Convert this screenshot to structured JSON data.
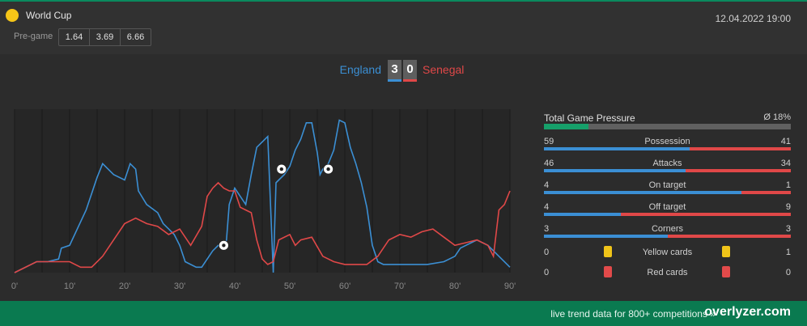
{
  "header": {
    "competition": "World Cup",
    "datetime": "12.04.2022 19:00",
    "pregame_label": "Pre-game",
    "odds": [
      "1.64",
      "3.69",
      "6.66"
    ],
    "competition_icon": "trophy-circle-icon"
  },
  "match": {
    "home_team": "England",
    "away_team": "Senegal",
    "home_score": "3",
    "away_score": "0"
  },
  "colors": {
    "home": "#3b8fd4",
    "away": "#e04848",
    "accent": "#0a7a50",
    "pressure": "#16a06a"
  },
  "chart_data": {
    "type": "line",
    "xlabel": "",
    "ylabel": "",
    "xlim": [
      0,
      90
    ],
    "x_ticks": [
      "0'",
      "10'",
      "20'",
      "30'",
      "40'",
      "50'",
      "60'",
      "70'",
      "80'",
      "90'"
    ],
    "grid": true,
    "series": [
      {
        "color": "#3b8fd4",
        "points": [
          [
            0,
            0
          ],
          [
            2,
            2
          ],
          [
            4,
            4
          ],
          [
            6,
            4
          ],
          [
            8,
            5
          ],
          [
            8.5,
            9
          ],
          [
            10,
            10
          ],
          [
            13,
            23
          ],
          [
            15,
            35
          ],
          [
            16,
            40
          ],
          [
            17,
            38
          ],
          [
            18,
            36
          ],
          [
            20,
            34
          ],
          [
            21,
            40
          ],
          [
            22,
            38
          ],
          [
            22.5,
            30
          ],
          [
            24,
            25
          ],
          [
            26,
            22
          ],
          [
            27,
            18
          ],
          [
            28,
            16
          ],
          [
            29,
            14
          ],
          [
            30,
            10
          ],
          [
            31,
            4
          ],
          [
            33,
            2
          ],
          [
            34,
            2
          ],
          [
            35,
            5
          ],
          [
            36,
            8
          ],
          [
            37,
            10
          ],
          [
            38,
            9
          ],
          [
            38.5,
            12
          ],
          [
            39,
            25
          ],
          [
            40,
            31
          ],
          [
            41,
            28
          ],
          [
            42,
            25
          ],
          [
            43,
            36
          ],
          [
            44,
            46
          ],
          [
            45,
            48
          ],
          [
            46,
            50
          ],
          [
            47,
            0
          ],
          [
            47.5,
            33
          ],
          [
            48,
            34
          ],
          [
            49,
            36
          ],
          [
            50,
            39
          ],
          [
            51,
            45
          ],
          [
            52,
            49
          ],
          [
            53,
            55
          ],
          [
            54,
            55
          ],
          [
            55,
            44
          ],
          [
            55.5,
            36
          ],
          [
            56,
            38
          ],
          [
            57,
            40
          ],
          [
            58,
            45
          ],
          [
            59,
            56
          ],
          [
            60,
            55
          ],
          [
            61,
            46
          ],
          [
            62,
            40
          ],
          [
            63,
            33
          ],
          [
            64,
            24
          ],
          [
            65,
            10
          ],
          [
            66,
            4
          ],
          [
            67,
            3
          ],
          [
            70,
            3
          ],
          [
            75,
            3
          ],
          [
            78,
            4
          ],
          [
            80,
            6
          ],
          [
            81,
            9
          ],
          [
            82,
            10
          ],
          [
            84,
            12
          ],
          [
            86,
            10
          ],
          [
            88,
            6
          ],
          [
            90,
            2
          ]
        ]
      },
      {
        "color": "#e04848",
        "points": [
          [
            0,
            0
          ],
          [
            4,
            4
          ],
          [
            8,
            4
          ],
          [
            10,
            4
          ],
          [
            12,
            2
          ],
          [
            14,
            2
          ],
          [
            16,
            6
          ],
          [
            18,
            12
          ],
          [
            20,
            18
          ],
          [
            22,
            20
          ],
          [
            24,
            18
          ],
          [
            26,
            17
          ],
          [
            28,
            14
          ],
          [
            30,
            16
          ],
          [
            32,
            10
          ],
          [
            34,
            17
          ],
          [
            35,
            28
          ],
          [
            36,
            31
          ],
          [
            37,
            33
          ],
          [
            38,
            31
          ],
          [
            39,
            30
          ],
          [
            40,
            30
          ],
          [
            41,
            24
          ],
          [
            42,
            23
          ],
          [
            43,
            22
          ],
          [
            44,
            12
          ],
          [
            45,
            5
          ],
          [
            46,
            3
          ],
          [
            47,
            4
          ],
          [
            48,
            12
          ],
          [
            50,
            14
          ],
          [
            51,
            10
          ],
          [
            52,
            12
          ],
          [
            54,
            13
          ],
          [
            56,
            6
          ],
          [
            58,
            4
          ],
          [
            60,
            3
          ],
          [
            62,
            3
          ],
          [
            64,
            3
          ],
          [
            66,
            6
          ],
          [
            68,
            12
          ],
          [
            70,
            14
          ],
          [
            72,
            13
          ],
          [
            74,
            15
          ],
          [
            76,
            16
          ],
          [
            78,
            13
          ],
          [
            80,
            10
          ],
          [
            82,
            11
          ],
          [
            84,
            12
          ],
          [
            86,
            10
          ],
          [
            87,
            6
          ],
          [
            88,
            23
          ],
          [
            89,
            25
          ],
          [
            90,
            30
          ]
        ]
      }
    ],
    "goals": [
      {
        "x": 38,
        "y": 10
      },
      {
        "x": 48.5,
        "y": 38
      },
      {
        "x": 57,
        "y": 38
      }
    ],
    "goal_icon": "soccer-ball-icon"
  },
  "stats": {
    "pressure_label": "Total Game Pressure",
    "pressure_value": "Ø 18%",
    "pressure_fraction": 0.18,
    "rows": [
      {
        "label": "Possession",
        "home": "59",
        "away": "41",
        "home_fraction": 0.59
      },
      {
        "label": "Attacks",
        "home": "46",
        "away": "34",
        "home_fraction": 0.575
      },
      {
        "label": "On target",
        "home": "4",
        "away": "1",
        "home_fraction": 0.8
      },
      {
        "label": "Off target",
        "home": "4",
        "away": "9",
        "home_fraction": 0.31
      },
      {
        "label": "Corners",
        "home": "3",
        "away": "3",
        "home_fraction": 0.5
      }
    ],
    "cards": [
      {
        "label": "Yellow cards",
        "home": "0",
        "away": "1",
        "color": "yellow"
      },
      {
        "label": "Red cards",
        "home": "0",
        "away": "0",
        "color": "red"
      }
    ]
  },
  "footer": {
    "text": "live trend data for 800+ competitions »",
    "brand": "overlyzer.com"
  }
}
